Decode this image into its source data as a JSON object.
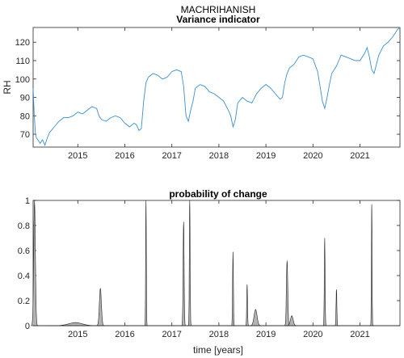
{
  "station": "MACHRIHANISH",
  "chart_data": [
    {
      "type": "line",
      "title": "Variance indicator",
      "xlabel": "",
      "ylabel": "RH",
      "xlim": [
        2014.05,
        2021.85
      ],
      "ylim": [
        63,
        128
      ],
      "yticks": [
        70,
        80,
        90,
        100,
        110,
        120
      ],
      "xticks": [
        2015,
        2016,
        2017,
        2018,
        2019,
        2020,
        2021
      ],
      "xtick_labels": [
        "2015",
        "2016",
        "2017",
        "2018",
        "2019",
        "2020",
        "2021"
      ],
      "grid": false,
      "color": "#3c8fd0",
      "series": [
        {
          "x": [
            2014.05,
            2014.07,
            2014.1,
            2014.12,
            2014.15,
            2014.2,
            2014.25,
            2014.3,
            2014.35,
            2014.4,
            2014.5,
            2014.6,
            2014.7,
            2014.8,
            2014.9,
            2015.0,
            2015.1,
            2015.2,
            2015.3,
            2015.4,
            2015.45,
            2015.5,
            2015.6,
            2015.7,
            2015.8,
            2015.9,
            2016.0,
            2016.1,
            2016.2,
            2016.25,
            2016.3,
            2016.35,
            2016.4,
            2016.45,
            2016.5,
            2016.6,
            2016.7,
            2016.8,
            2016.9,
            2017.0,
            2017.1,
            2017.2,
            2017.25,
            2017.3,
            2017.35,
            2017.4,
            2017.45,
            2017.5,
            2017.6,
            2017.7,
            2017.8,
            2017.9,
            2018.0,
            2018.1,
            2018.2,
            2018.25,
            2018.3,
            2018.35,
            2018.4,
            2018.5,
            2018.6,
            2018.7,
            2018.8,
            2018.9,
            2019.0,
            2019.1,
            2019.2,
            2019.3,
            2019.35,
            2019.4,
            2019.45,
            2019.5,
            2019.6,
            2019.7,
            2019.8,
            2019.9,
            2020.0,
            2020.1,
            2020.15,
            2020.2,
            2020.25,
            2020.3,
            2020.35,
            2020.4,
            2020.5,
            2020.55,
            2020.6,
            2020.7,
            2020.8,
            2020.9,
            2021.0,
            2021.1,
            2021.15,
            2021.2,
            2021.25,
            2021.3,
            2021.35,
            2021.4,
            2021.5,
            2021.6,
            2021.7,
            2021.8,
            2021.85
          ],
          "y": [
            95,
            82,
            70,
            68,
            67,
            65,
            67,
            64,
            68,
            71,
            74,
            77,
            79,
            79,
            80,
            82,
            81,
            83,
            85,
            84,
            80,
            78,
            77,
            79,
            80,
            79,
            76,
            74,
            76,
            75,
            72,
            73,
            88,
            98,
            101,
            103,
            102,
            100,
            101,
            104,
            105,
            104,
            96,
            80,
            77,
            83,
            88,
            95,
            97,
            96,
            93,
            92,
            90,
            88,
            83,
            80,
            74,
            78,
            87,
            90,
            88,
            87,
            92,
            95,
            97,
            95,
            92,
            89,
            90,
            98,
            103,
            106,
            108,
            112,
            113,
            112,
            111,
            104,
            96,
            88,
            84,
            90,
            97,
            103,
            107,
            110,
            113,
            112,
            111,
            110,
            110,
            114,
            117,
            112,
            105,
            103,
            108,
            113,
            118,
            120,
            123,
            127,
            128
          ]
        }
      ]
    },
    {
      "type": "area",
      "title": "probability of change",
      "xlabel": "time [years]",
      "ylabel": "",
      "xlim": [
        2014.05,
        2021.85
      ],
      "ylim": [
        0,
        1
      ],
      "yticks": [
        0,
        0.2,
        0.4,
        0.6,
        0.8,
        1
      ],
      "ytick_labels": [
        "0",
        "0.2",
        "0.4",
        "0.6",
        "0.8",
        "1"
      ],
      "xticks": [
        2015,
        2016,
        2017,
        2018,
        2019,
        2020,
        2021
      ],
      "xtick_labels": [
        "2015",
        "2016",
        "2017",
        "2018",
        "2019",
        "2020",
        "2021"
      ],
      "fill": "#b3b3b3",
      "peaks": [
        {
          "x": 2014.08,
          "y": 1.0,
          "w": 0.025
        },
        {
          "x": 2014.95,
          "y": 0.025,
          "w": 0.2
        },
        {
          "x": 2015.48,
          "y": 0.3,
          "w": 0.03
        },
        {
          "x": 2016.45,
          "y": 1.0,
          "w": 0.01
        },
        {
          "x": 2017.25,
          "y": 0.83,
          "w": 0.015
        },
        {
          "x": 2017.38,
          "y": 1.0,
          "w": 0.012
        },
        {
          "x": 2018.3,
          "y": 0.59,
          "w": 0.012
        },
        {
          "x": 2018.6,
          "y": 0.33,
          "w": 0.012
        },
        {
          "x": 2018.78,
          "y": 0.13,
          "w": 0.045
        },
        {
          "x": 2019.45,
          "y": 0.52,
          "w": 0.02
        },
        {
          "x": 2019.55,
          "y": 0.08,
          "w": 0.04
        },
        {
          "x": 2020.25,
          "y": 0.7,
          "w": 0.012
        },
        {
          "x": 2020.5,
          "y": 0.29,
          "w": 0.012
        },
        {
          "x": 2021.25,
          "y": 0.97,
          "w": 0.01
        }
      ]
    }
  ]
}
